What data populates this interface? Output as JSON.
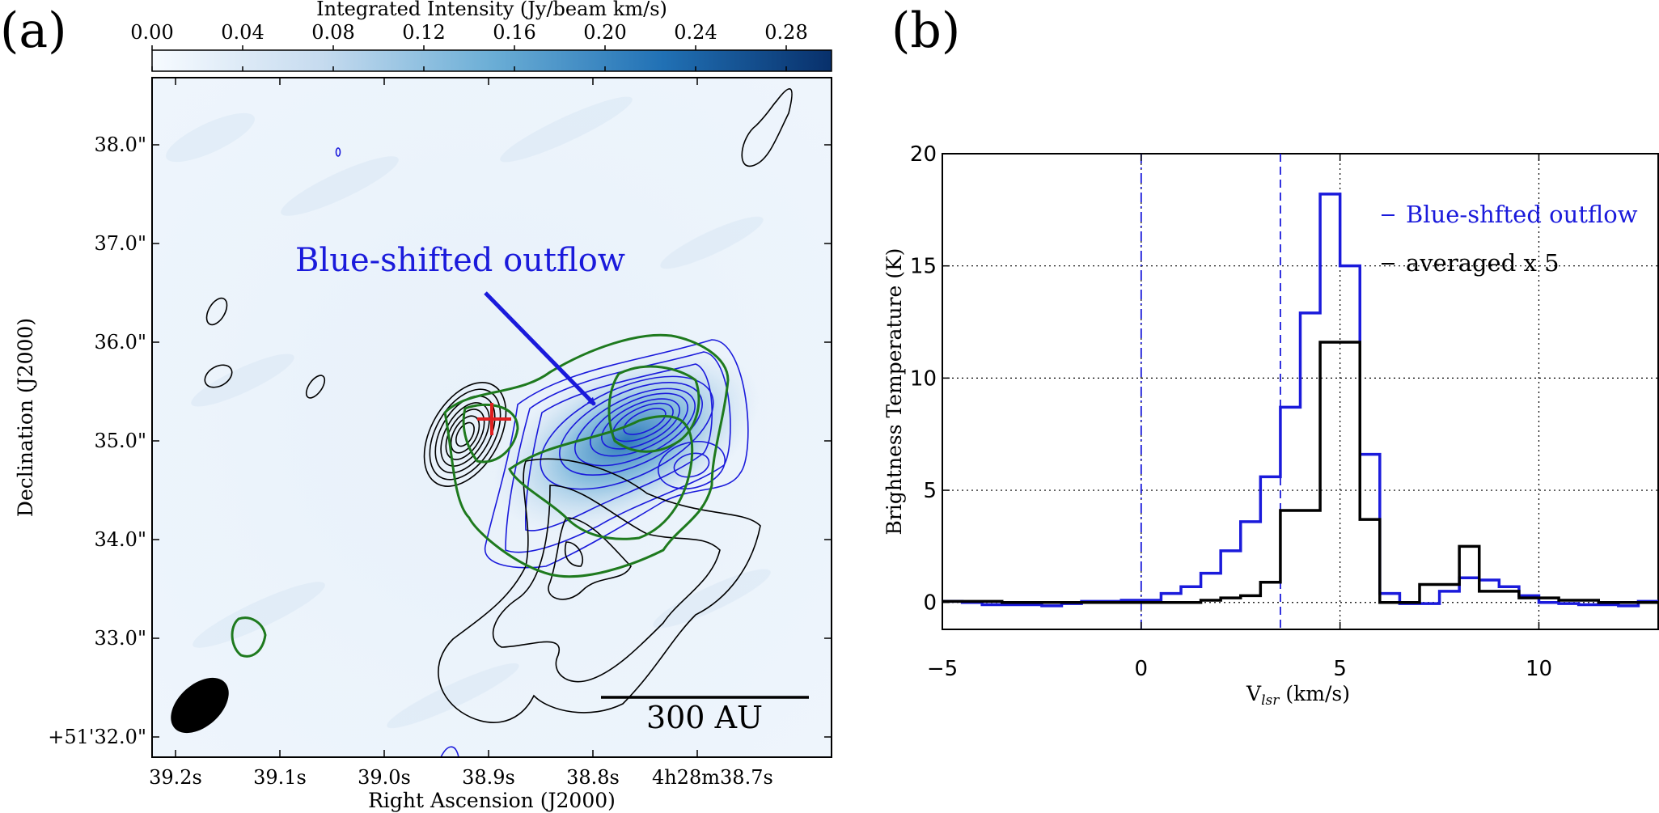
{
  "panels": {
    "a_label": "(a)",
    "b_label": "(b)"
  },
  "chart_data": [
    {
      "type": "heatmap",
      "panel": "(a)",
      "colorbar": {
        "title": "Integrated Intensity (Jy/beam km/s)",
        "ticks": [
          "0.00",
          "0.04",
          "0.08",
          "0.12",
          "0.16",
          "0.20",
          "0.24",
          "0.28"
        ],
        "range": [
          0.0,
          0.3
        ],
        "colormap": [
          "#f7fbff",
          "#c6dbef",
          "#6baed6",
          "#2171b5",
          "#08306b"
        ]
      },
      "xlabel": "Right Ascension (J2000)",
      "ylabel": "Declination (J2000)",
      "xticks": [
        "39.2s",
        "39.1s",
        "39.0s",
        "38.9s",
        "38.8s",
        "4h28m38.7s"
      ],
      "yticks": [
        "38.0\"",
        "37.0\"",
        "36.0\"",
        "35.0\"",
        "34.0\"",
        "33.0\"",
        "+51'32.0\""
      ],
      "annotation": "Blue-shifted outflow",
      "scalebar_label": "300 AU",
      "contour_colors": {
        "blue": "#1a1adb",
        "black": "#000000",
        "green": "#1e7a1e",
        "red": "#e02020"
      }
    },
    {
      "type": "line",
      "panel": "(b)",
      "xlabel_main": "V",
      "xlabel_sub": "lsr",
      "xlabel_unit": " (km/s)",
      "ylabel": "Brightness Temperature (K)",
      "xlim": [
        -5,
        13
      ],
      "ylim": [
        -1.2,
        20
      ],
      "xticks": [
        -5,
        0,
        5,
        10
      ],
      "yticks": [
        0,
        5,
        10,
        15,
        20
      ],
      "vlines": [
        {
          "x": 0,
          "style": "dashdot",
          "color": "#1a1adb"
        },
        {
          "x": 3.5,
          "style": "dashed",
          "color": "#1a1adb"
        }
      ],
      "series": [
        {
          "name": "Blue-shfted outflow",
          "color": "#1a1adb",
          "edges": [
            -5,
            -4.5,
            -4,
            -3.5,
            -3,
            -2.5,
            -2,
            -1.5,
            -1,
            -0.5,
            0,
            0.5,
            1,
            1.5,
            2,
            2.5,
            3,
            3.5,
            4,
            4.5,
            5,
            5.5,
            6,
            6.5,
            7,
            7.5,
            8,
            8.5,
            9,
            9.5,
            10,
            10.5,
            11,
            11.5,
            12,
            12.5,
            13
          ],
          "values": [
            0.05,
            0,
            -0.1,
            -0.1,
            -0.1,
            -0.15,
            -0.05,
            0.05,
            0.05,
            0.1,
            0.1,
            0.4,
            0.7,
            1.3,
            2.3,
            3.6,
            5.6,
            8.7,
            12.9,
            18.2,
            15.0,
            6.6,
            0.4,
            -0.05,
            -0.05,
            0.5,
            1.1,
            1.0,
            0.7,
            0.3,
            0,
            -0.05,
            -0.1,
            -0.1,
            -0.15,
            0.05
          ]
        },
        {
          "name": "averaged x 5",
          "color": "#000000",
          "edges": [
            -5,
            -4.5,
            -4,
            -3.5,
            -3,
            -2.5,
            -2,
            -1.5,
            -1,
            -0.5,
            0,
            0.5,
            1,
            1.5,
            2,
            2.5,
            3,
            3.5,
            4,
            4.5,
            5,
            5.5,
            6,
            6.5,
            7,
            7.5,
            8,
            8.5,
            9,
            9.5,
            10,
            10.5,
            11,
            11.5,
            12,
            12.5,
            13
          ],
          "values": [
            0.05,
            0.05,
            0.05,
            0,
            0,
            0,
            0,
            0,
            0,
            0,
            0,
            0,
            0,
            0.1,
            0.2,
            0.3,
            0.9,
            4.1,
            4.1,
            11.6,
            11.6,
            3.7,
            0,
            0,
            0.8,
            0.8,
            2.5,
            0.5,
            0.5,
            0.2,
            0.2,
            0.1,
            0.1,
            0,
            0,
            0
          ]
        }
      ],
      "legend": [
        {
          "label": "Blue-shfted outflow",
          "color": "#1a1adb"
        },
        {
          "label": "averaged x 5",
          "color": "#000000"
        }
      ]
    }
  ]
}
